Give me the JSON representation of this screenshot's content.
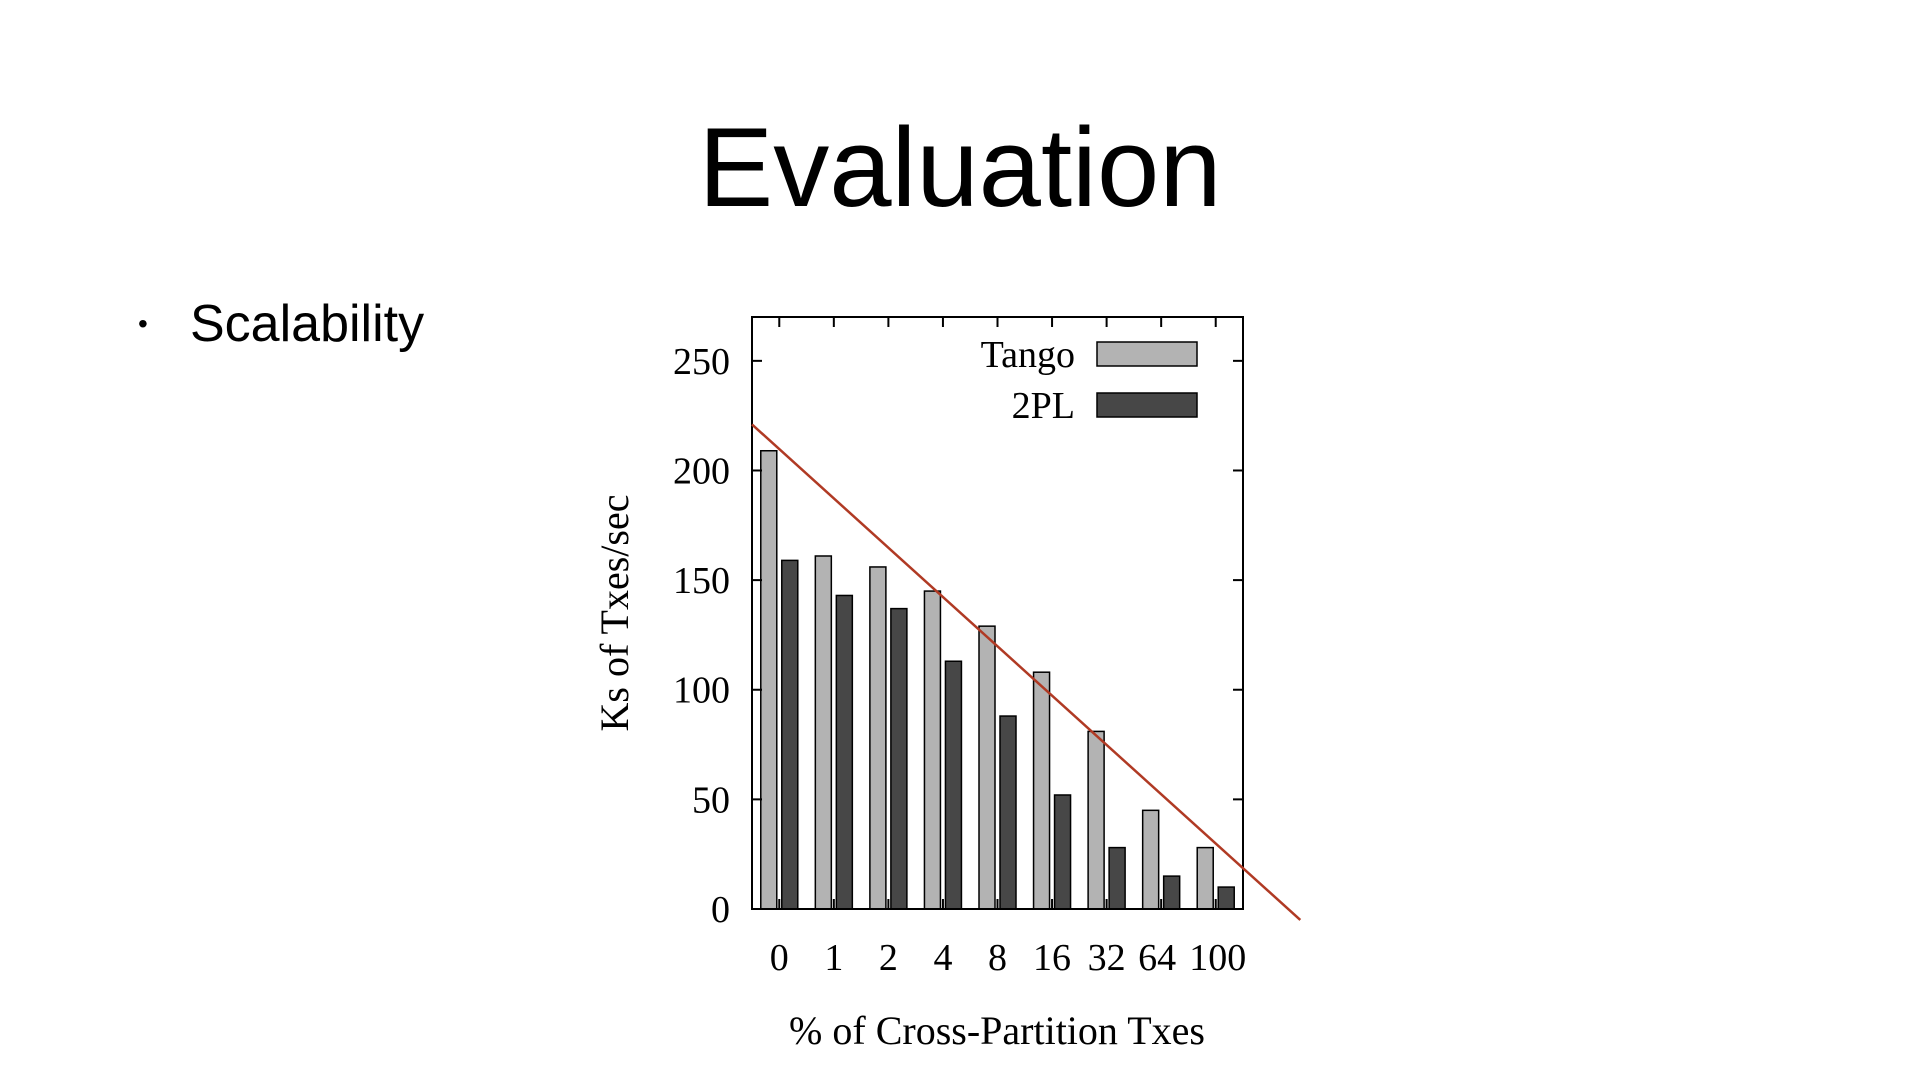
{
  "slide": {
    "title": "Evaluation",
    "bullet": "Scalability"
  },
  "chart_data": {
    "type": "bar",
    "title": "",
    "xlabel": "% of Cross-Partition Txes",
    "ylabel": "Ks of Txes/sec",
    "categories": [
      "0",
      "1",
      "2",
      "4",
      "8",
      "16",
      "32",
      "64",
      "100"
    ],
    "series": [
      {
        "name": "Tango",
        "color": "#b3b3b3",
        "values": [
          209,
          161,
          156,
          145,
          129,
          108,
          81,
          45,
          28
        ]
      },
      {
        "name": "2PL",
        "color": "#474747",
        "values": [
          159,
          143,
          137,
          113,
          88,
          52,
          28,
          15,
          10
        ]
      }
    ],
    "ylim": [
      0,
      270
    ],
    "yticks": [
      0,
      50,
      100,
      150,
      200,
      250
    ],
    "legend_position": "top-right",
    "grid": false,
    "trend_line": {
      "color": "#b03a24",
      "from": [
        -0.5,
        221
      ],
      "to": [
        9.55,
        -5
      ]
    }
  }
}
